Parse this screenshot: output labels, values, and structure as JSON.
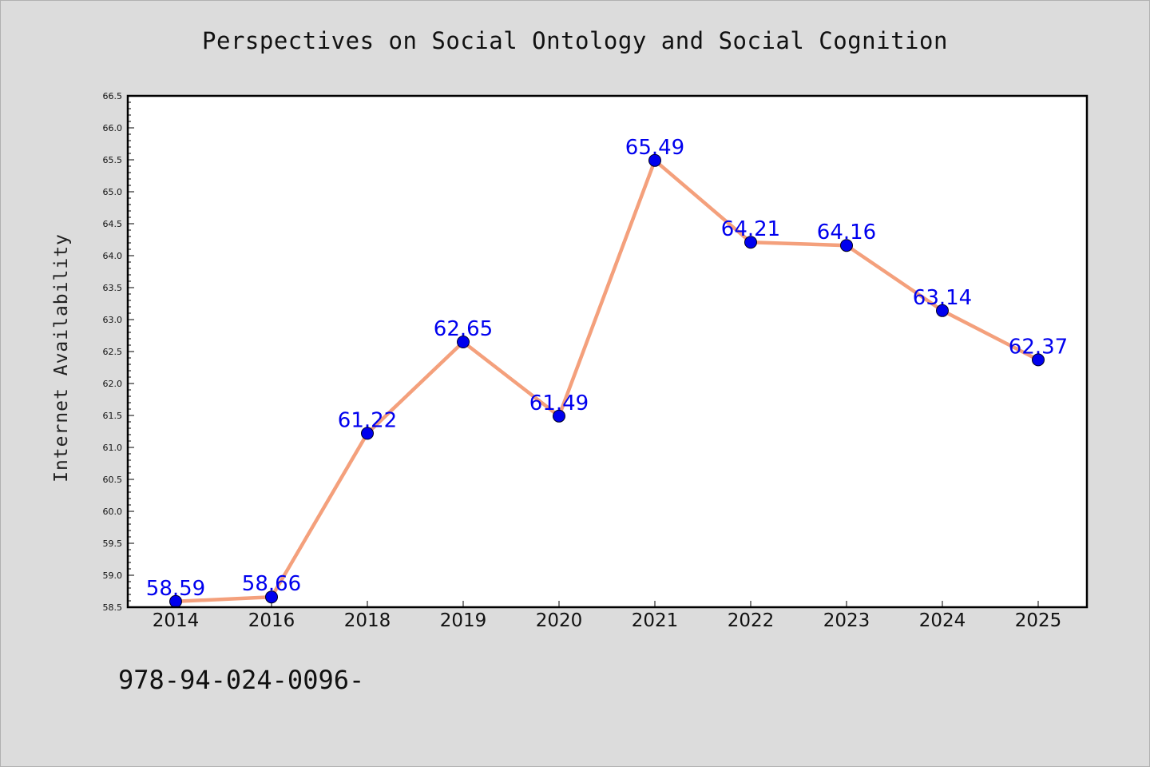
{
  "chart_data": {
    "type": "line",
    "title": "Perspectives on Social Ontology and Social Cognition",
    "xlabel": "",
    "ylabel": "Internet Availability",
    "categories": [
      "2014",
      "2016",
      "2018",
      "2019",
      "2020",
      "2021",
      "2022",
      "2023",
      "2024",
      "2025"
    ],
    "values": [
      58.59,
      58.66,
      61.22,
      62.65,
      61.49,
      65.49,
      64.21,
      64.16,
      63.14,
      62.37
    ],
    "data_labels": [
      "58.59",
      "58.66",
      "61.22",
      "62.65",
      "61.49",
      "65.49",
      "64.21",
      "64.16",
      "63.14",
      "62.37"
    ],
    "ylim": [
      58.5,
      66.5
    ],
    "yticks": [
      "58.5",
      "59.0",
      "59.5",
      "60.0",
      "60.5",
      "61.0",
      "61.5",
      "62.0",
      "62.5",
      "63.0",
      "63.5",
      "64.0",
      "64.5",
      "65.0",
      "65.5",
      "66.0",
      "66.5"
    ],
    "grid": false,
    "colors": {
      "line": "#f4a07c",
      "marker": "#0000ee",
      "label": "#0000ee",
      "plot_bg": "#ffffff",
      "figure_bg": "#dcdcdc"
    }
  },
  "footer_text": "978-94-024-0096-"
}
